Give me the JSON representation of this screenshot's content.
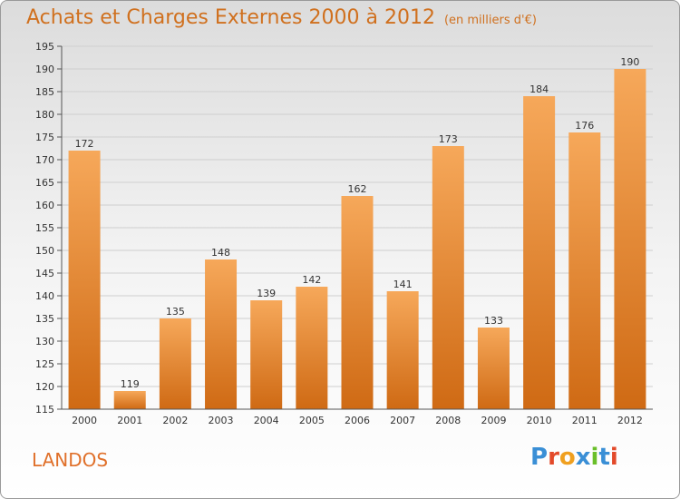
{
  "header": {
    "title": "Achats et Charges Externes 2000 à 2012",
    "subtitle": "(en milliers d'€)"
  },
  "footer": {
    "commune": "LANDOS",
    "logo_text": "Proxiti"
  },
  "colors": {
    "bar_light": "#f6a85a",
    "bar_dark": "#cf6a14",
    "title": "#d0701e",
    "commune": "#e0702a",
    "logo": [
      "#3a8fd6",
      "#e34a2a",
      "#f0a020",
      "#3a8fd6",
      "#6abf2a",
      "#3a8fd6",
      "#e34a2a"
    ]
  },
  "chart_data": {
    "type": "bar",
    "title": "Achats et Charges Externes 2000 à 2012",
    "subtitle": "(en milliers d'€)",
    "categories": [
      "2000",
      "2001",
      "2002",
      "2003",
      "2004",
      "2005",
      "2006",
      "2007",
      "2008",
      "2009",
      "2010",
      "2011",
      "2012"
    ],
    "values": [
      172,
      119,
      135,
      148,
      139,
      142,
      162,
      141,
      173,
      133,
      184,
      176,
      190
    ],
    "ylim": [
      115,
      195
    ],
    "yticks": [
      115,
      120,
      125,
      130,
      135,
      140,
      145,
      150,
      155,
      160,
      165,
      170,
      175,
      180,
      185,
      190,
      195
    ],
    "grid": true,
    "legend": "none"
  }
}
